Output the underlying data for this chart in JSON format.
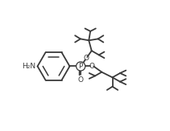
{
  "bg_color": "#ffffff",
  "line_color": "#3a3a3a",
  "line_width": 1.3,
  "figsize": [
    2.11,
    1.63
  ],
  "dpi": 100,
  "xlim": [
    0,
    10.5
  ],
  "ylim": [
    0,
    8.5
  ]
}
